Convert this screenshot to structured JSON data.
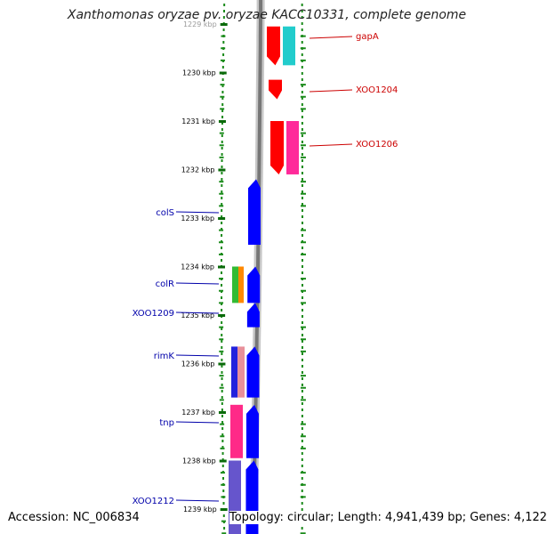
{
  "title": "Xanthomonas oryzae pv. oryzae KACC10331, complete genome",
  "footer": {
    "accession": "Accession: NC_006834",
    "topology": "Topology: circular; Length: 4,941,439 bp; Genes: 4,122"
  },
  "colors": {
    "ruler_green": "#1a8a1a",
    "backbone_grey": "#777777",
    "forward_gene_red": "#ff0000",
    "reverse_gene_blue": "#0000ff",
    "label_red": "#cc0000",
    "label_blue": "#0000aa"
  },
  "axis": {
    "tick_labels": [
      "1229 kbp",
      "1230 kbp",
      "1231 kbp",
      "1232 kbp",
      "1233 kbp",
      "1234 kbp",
      "1235 kbp",
      "1236 kbp",
      "1237 kbp",
      "1238 kbp",
      "1239 kbp"
    ],
    "tick_values_kbp": [
      1229,
      1230,
      1231,
      1232,
      1233,
      1234,
      1235,
      1236,
      1237,
      1238,
      1239
    ]
  },
  "forward_genes": [
    {
      "name": "gapA",
      "start_kbp": 1229.05,
      "end_kbp": 1229.85,
      "color": "#ff0000"
    },
    {
      "name": "gapA-cog",
      "start_kbp": 1229.05,
      "end_kbp": 1229.85,
      "color": "#22cccc"
    },
    {
      "name": "XOO1204",
      "start_kbp": 1230.15,
      "end_kbp": 1230.55,
      "color": "#ff0000"
    },
    {
      "name": "XOO1206",
      "start_kbp": 1231.0,
      "end_kbp": 1232.1,
      "color": "#ff0000"
    },
    {
      "name": "XOO1206-cog",
      "start_kbp": 1231.0,
      "end_kbp": 1232.1,
      "color": "#ff2a9a"
    }
  ],
  "reverse_genes": [
    {
      "name": "colS",
      "start_kbp": 1232.2,
      "end_kbp": 1233.55,
      "color": "#0000ff"
    },
    {
      "name": "colR",
      "start_kbp": 1234.0,
      "end_kbp": 1234.75,
      "color": "#0000ff"
    },
    {
      "name": "XOO1209",
      "start_kbp": 1234.75,
      "end_kbp": 1235.25,
      "color": "#0000ff"
    },
    {
      "name": "rimK",
      "start_kbp": 1235.65,
      "end_kbp": 1236.7,
      "color": "#0000ff"
    },
    {
      "name": "tnp",
      "start_kbp": 1236.85,
      "end_kbp": 1237.95,
      "color": "#0000ff"
    },
    {
      "name": "XOO1212",
      "start_kbp": 1238.0,
      "end_kbp": 1239.6,
      "color": "#0000ff"
    }
  ],
  "cog_blocks": [
    {
      "name": "colR-cog-green",
      "start_kbp": 1234.0,
      "end_kbp": 1234.75,
      "color": "#33bb33"
    },
    {
      "name": "colR-cog-orange",
      "start_kbp": 1234.0,
      "end_kbp": 1234.75,
      "color": "#ff8800"
    },
    {
      "name": "rimK-cog-blue",
      "start_kbp": 1235.65,
      "end_kbp": 1236.7,
      "color": "#2222dd"
    },
    {
      "name": "rimK-cog-salmon",
      "start_kbp": 1235.65,
      "end_kbp": 1236.7,
      "color": "#e8909a"
    },
    {
      "name": "tnp-cog-pink",
      "start_kbp": 1236.85,
      "end_kbp": 1237.95,
      "color": "#ff2a88"
    },
    {
      "name": "XOO1212-cog-slate",
      "start_kbp": 1238.0,
      "end_kbp": 1239.6,
      "color": "#6655cc"
    }
  ],
  "right_labels": [
    {
      "text": "gapA",
      "gene": "gapA"
    },
    {
      "text": "XOO1204",
      "gene": "XOO1204"
    },
    {
      "text": "XOO1206",
      "gene": "XOO1206"
    }
  ],
  "left_labels": [
    {
      "text": "colS",
      "gene": "colS"
    },
    {
      "text": "colR",
      "gene": "colR"
    },
    {
      "text": "XOO1209",
      "gene": "XOO1209"
    },
    {
      "text": "rimK",
      "gene": "rimK"
    },
    {
      "text": "tnp",
      "gene": "tnp"
    },
    {
      "text": "XOO1212",
      "gene": "XOO1212"
    }
  ]
}
